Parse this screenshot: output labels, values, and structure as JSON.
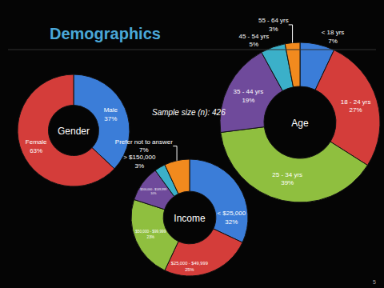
{
  "slide_title": "Demographics",
  "sample_size": "Sample size (n): 426",
  "page_number": "5",
  "chart_data": [
    {
      "type": "pie",
      "title": "Gender",
      "categories": [
        "Male",
        "Female"
      ],
      "values": [
        37,
        63
      ],
      "value_labels": [
        "37%",
        "63%"
      ],
      "colors": [
        "#3b7dd8",
        "#d43d3a"
      ],
      "data_labels": true
    },
    {
      "type": "pie",
      "title": "Income",
      "categories": [
        "< $25,000",
        "$25,000 - $49,999",
        "$50,000 - $99,999",
        "$100,000 - $149,999",
        "> $150,000",
        "Prefer not to answer"
      ],
      "values": [
        32,
        25,
        23,
        10,
        3,
        7
      ],
      "value_labels": [
        "32%",
        "25%",
        "23%",
        "10%",
        "3%",
        "7%"
      ],
      "colors": [
        "#3b7dd8",
        "#d43d3a",
        "#8fbf3f",
        "#6f4a9b",
        "#3bb0c9",
        "#f28a1e"
      ],
      "data_labels": true
    },
    {
      "type": "pie",
      "title": "Age",
      "categories": [
        "< 18 yrs",
        "18 - 24 yrs",
        "25 - 34 yrs",
        "35 - 44 yrs",
        "45 - 54 yrs",
        "55 - 64 yrs"
      ],
      "values": [
        7,
        27,
        39,
        19,
        5,
        3
      ],
      "value_labels": [
        "7%",
        "27%",
        "39%",
        "19%",
        "5%",
        "3%"
      ],
      "colors": [
        "#3b7dd8",
        "#d43d3a",
        "#8fbf3f",
        "#6f4a9b",
        "#3bb0c9",
        "#f28a1e"
      ],
      "data_labels": true
    }
  ]
}
